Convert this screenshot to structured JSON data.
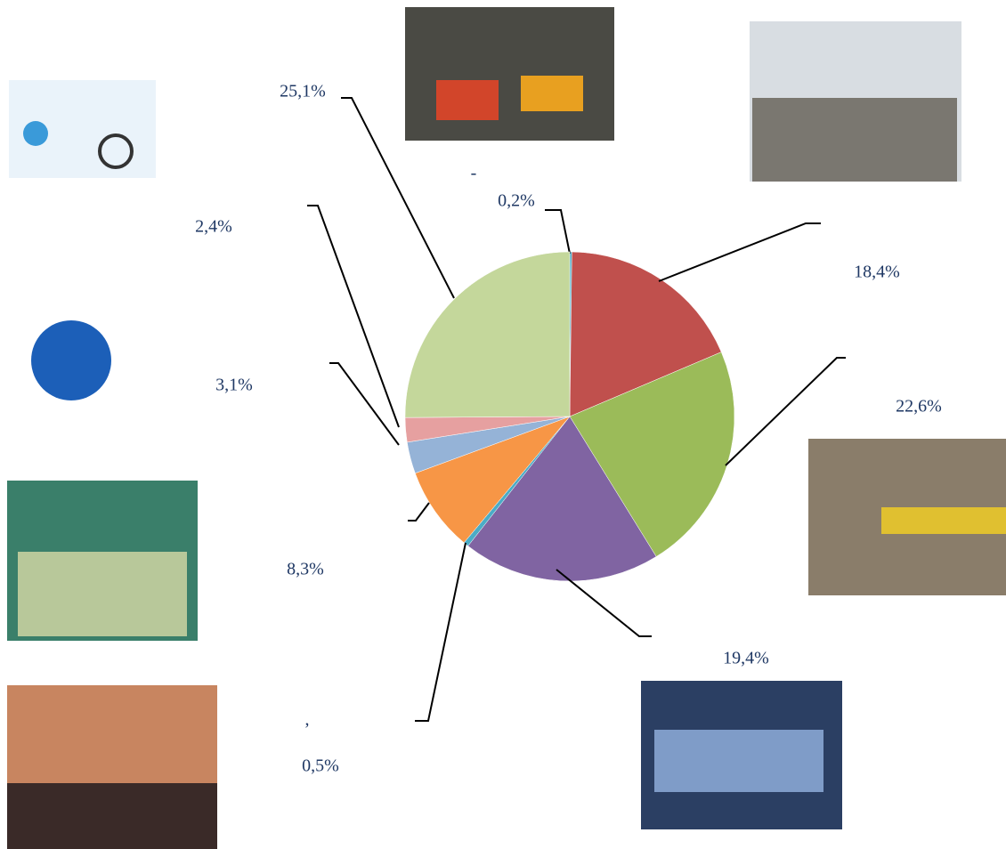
{
  "chart_data": {
    "type": "pie",
    "values": [
      0.2,
      18.4,
      22.6,
      19.4,
      0.5,
      8.3,
      3.1,
      2.4,
      25.1
    ],
    "value_labels": [
      "0,2%",
      "18,4%",
      "22,6%",
      "19,4%",
      "0,5%",
      "8,3%",
      "3,1%",
      "2,4%",
      "25,1%"
    ],
    "colors": [
      "#4bacc6",
      "#c0504d",
      "#9bbb59",
      "#8064a2",
      "#4bacc6",
      "#f79646",
      "#95b3d7",
      "#e6a0a0",
      "#c4d79b"
    ],
    "annotations": [
      "-",
      ","
    ]
  }
}
